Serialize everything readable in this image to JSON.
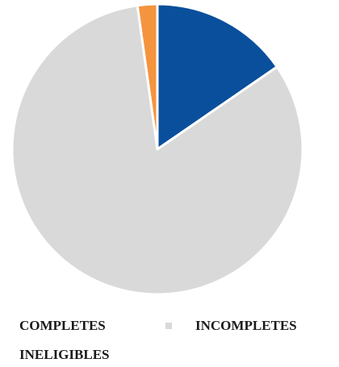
{
  "chart_data": {
    "type": "pie",
    "title": "",
    "categories": [
      "COMPLETES",
      "INCOMPLETES",
      "INELIGIBLES"
    ],
    "values": [
      15.4,
      82.4,
      2.2
    ],
    "colors": [
      "#0a4f9c",
      "#d9d9d9",
      "#f4943f"
    ],
    "legend_position": "bottom"
  },
  "legend": {
    "completes": "COMPLETES",
    "incompletes": "INCOMPLETES",
    "ineligibles": "INELIGIBLES"
  }
}
